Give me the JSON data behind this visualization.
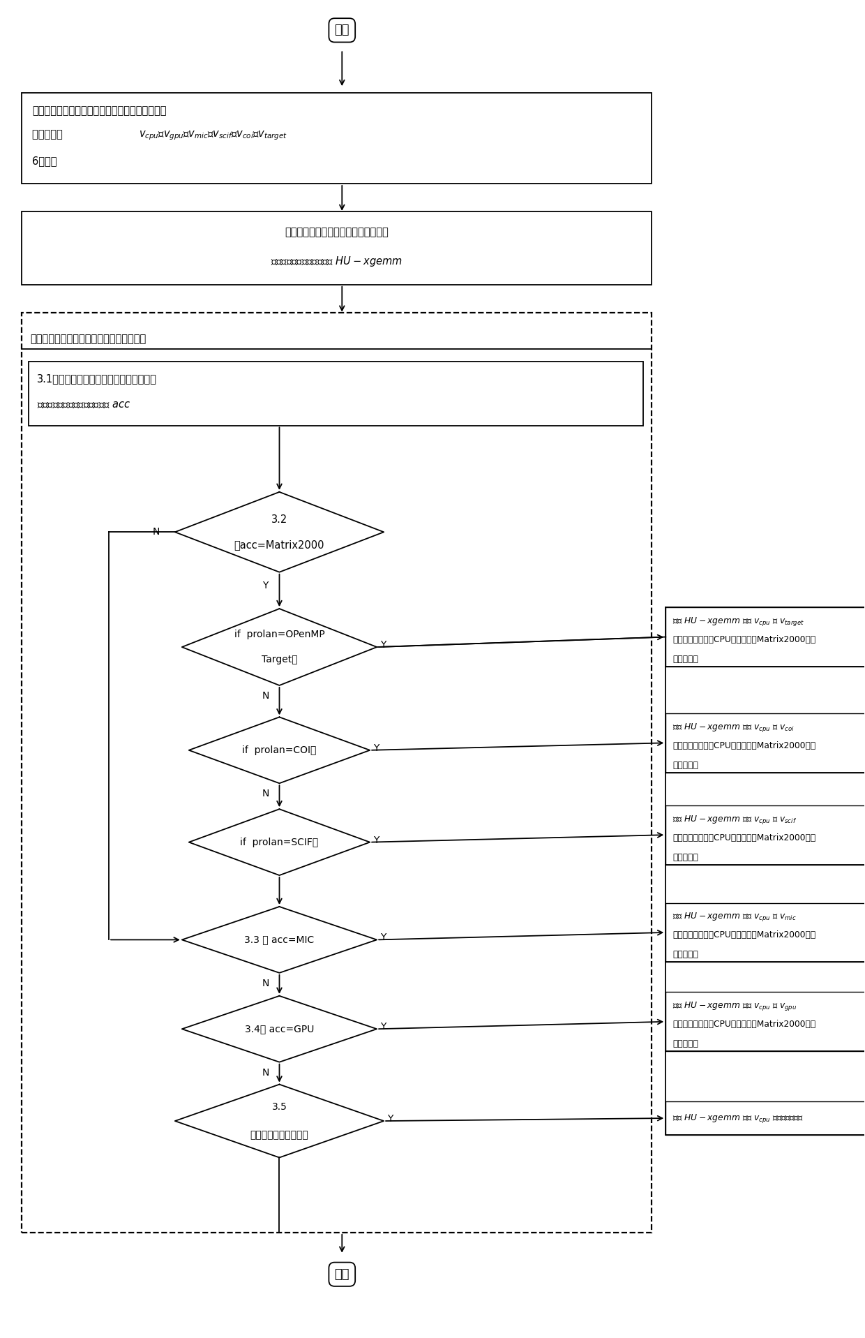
{
  "bg_color": "#ffffff",
  "start_label": "开始",
  "end_label": "结束",
  "step1_line1": "第一步、设计面向异构融合体系结构的分块矩阵乘",
  "step1_line2": "版本，得到  ",
  "step1_line2b": "$v_{cpu}$、$v_{gpu}$、$v_{mic}$、$v_{scif}$、$v_{coi}$、$v_{target}$",
  "step1_line3": "6种版本",
  "step2_line1": "第二步、集成异构融合多版本矩阵乘，",
  "step2_line2": "生成异构融合版本的库文件 $HU-xgemm$",
  "step3_header": "第三步、适配异构融合体系结构中的加速器",
  "step31_line1": "3.1查询异构融合体系结构中加速器类型，",
  "step31_line2": "令加速器类型变量为加速器类型 $acc$",
  "d32_line1": "3.2",
  "d32_line2": "若acc=Matrix2000",
  "d_openmp_line1": "if  prolan=OPenMP",
  "d_openmp_line2": "Target？",
  "d_coi": "if  prolan=COI？",
  "d_scif": "if  prolan=SCIF？",
  "d_mic_line1": "3.3 若 acc=MIC",
  "d_gpu_line1": "3.4若 acc=GPU",
  "d35_line1": "3.5",
  "d35_line2": "若系统中无专用加速器",
  "rb1_l1": "调用 $HU-xgemm$ 中的 $v_{cpu}$ 和 $v_{target}$",
  "rb1_l2": "分别完成主处理器CPU端和加速器Matrix2000端的",
  "rb1_l3": "矩阵乘计算",
  "rb2_l1": "调用 $HU-xgemm$ 中的 $v_{cpu}$ 和 $v_{coi}$",
  "rb2_l2": "分别完成主处理器CPU端和加速器Matrix2000端的",
  "rb2_l3": "矩阵乘计算",
  "rb3_l1": "调用 $HU-xgemm$ 中的 $v_{cpu}$ 和 $v_{scif}$",
  "rb3_l2": "分别完成主处理器CPU端和加速器Matrix2000端的",
  "rb3_l3": "矩阵乘计算",
  "rb4_l1": "调用 $HU-xgemm$ 中的 $v_{cpu}$ 和 $v_{mic}$",
  "rb4_l2": "分别完成主处理器CPU端和加速器Matrix2000端的",
  "rb4_l3": "矩阵乘计算",
  "rb5_l1": "调用 $HU-xgemm$ 中的 $v_{cpu}$ 和 $v_{gpu}$",
  "rb5_l2": "分别完成主处理器CPU端和加速器Matrix2000端的",
  "rb5_l3": "矩阵乘计算",
  "rb6_l1": "调用 $HU-xgemm$ 中的 $v_{cpu}$ 完成矩阵乘计算",
  "y_label": "Y",
  "n_label": "N"
}
